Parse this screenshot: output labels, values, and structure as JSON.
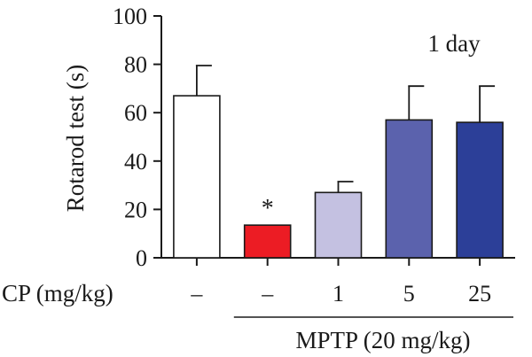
{
  "chart_data": {
    "type": "bar",
    "annotation": "1 day",
    "ylabel": "Rotarod test (s)",
    "ylim": [
      0,
      100
    ],
    "yticks": [
      0,
      20,
      40,
      60,
      80,
      100
    ],
    "category_axis_label": "CP (mg/kg)",
    "categories": [
      "–",
      "–",
      "1",
      "5",
      "25"
    ],
    "values": [
      67,
      13.5,
      27,
      57,
      56
    ],
    "errors": [
      12.5,
      0,
      4.5,
      14,
      15
    ],
    "colors": [
      "#ffffff",
      "#ec1c24",
      "#c4c1e1",
      "#5b62ad",
      "#2c3f98"
    ],
    "significance": [
      "",
      "*",
      "",
      "",
      ""
    ],
    "group_label": "MPTP (20 mg/kg)",
    "group_span": [
      1,
      4
    ]
  }
}
